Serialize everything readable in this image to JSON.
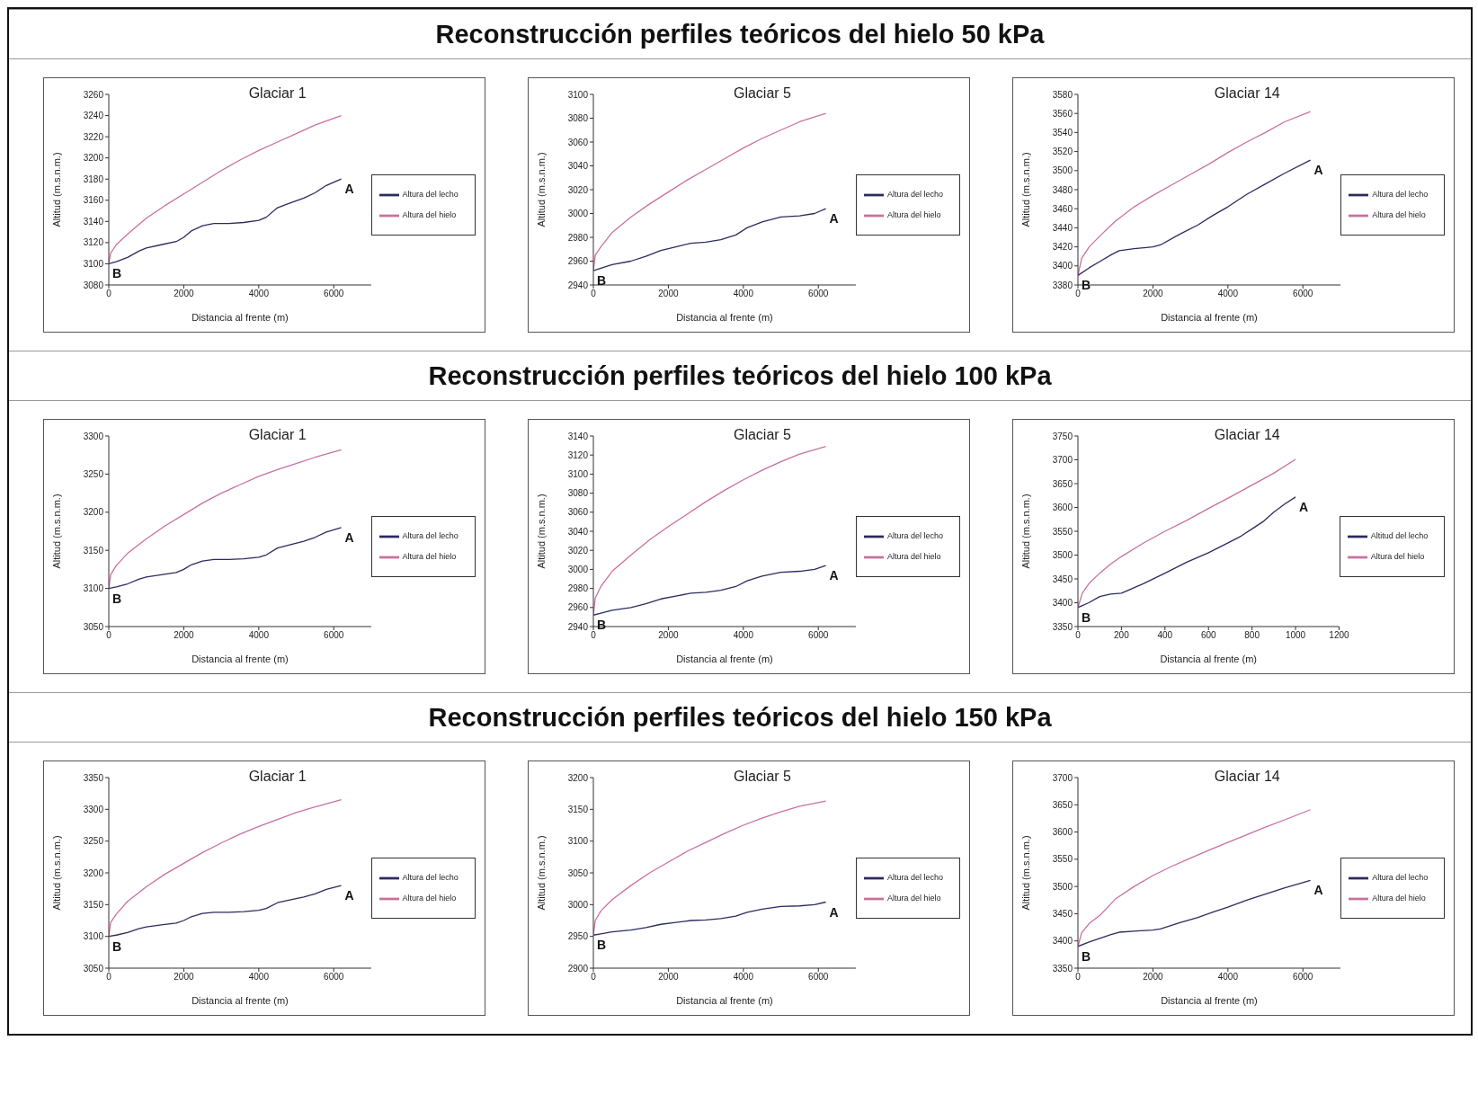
{
  "chart_data": [
    {
      "type": "other",
      "title": "Reconstrucción perfiles teóricos del hielo 50 kPa"
    },
    {
      "type": "line",
      "title": "Glaciar 1",
      "xlabel": "Distancia al frente (m)",
      "ylabel": "Altitud (m.s.n.m.)",
      "xlim": [
        0,
        7000
      ],
      "xticks": [
        0,
        2000,
        4000,
        6000
      ],
      "ylim": [
        3080,
        3260
      ],
      "yticks": [
        3080,
        3100,
        3120,
        3140,
        3160,
        3180,
        3200,
        3220,
        3240,
        3260
      ],
      "legend": "right",
      "marker": "none",
      "line_style": "solid",
      "series": [
        {
          "name": "Altura del lecho",
          "color": "#2b2b5e",
          "x": [
            0,
            200,
            500,
            800,
            1000,
            1400,
            1800,
            2000,
            2200,
            2500,
            2800,
            3200,
            3600,
            4000,
            4200,
            4500,
            4800,
            5200,
            5500,
            5800,
            6200
          ],
          "values": [
            3100,
            3102,
            3106,
            3112,
            3115,
            3118,
            3121,
            3125,
            3131,
            3136,
            3138,
            3138,
            3139,
            3141,
            3144,
            3153,
            3157,
            3162,
            3167,
            3174,
            3180
          ]
        },
        {
          "name": "Altura del hielo",
          "color": "#c9709e",
          "x": [
            0,
            50,
            200,
            500,
            1000,
            1500,
            2000,
            2500,
            3000,
            3500,
            4000,
            4500,
            5000,
            5500,
            6200
          ],
          "values": [
            3100,
            3110,
            3118,
            3128,
            3143,
            3155,
            3166,
            3177,
            3188,
            3198,
            3207,
            3215,
            3223,
            3231,
            3240
          ]
        }
      ],
      "annotations": [
        {
          "text": "A",
          "x": 6200,
          "y": 3180
        },
        {
          "text": "B",
          "x": 0,
          "y": 3100
        }
      ]
    },
    {
      "type": "line",
      "title": "Glaciar 5",
      "xlabel": "Distancia al frente (m)",
      "ylabel": "Altitud (m.s.n.m.)",
      "xlim": [
        0,
        7000
      ],
      "xticks": [
        0,
        2000,
        4000,
        6000
      ],
      "ylim": [
        2940,
        3100
      ],
      "yticks": [
        2940,
        2960,
        2980,
        3000,
        3020,
        3040,
        3060,
        3080,
        3100
      ],
      "legend": "right",
      "marker": "none",
      "line_style": "solid",
      "series": [
        {
          "name": "Altura del lecho",
          "color": "#2b2b5e",
          "x": [
            0,
            200,
            500,
            1000,
            1400,
            1800,
            2200,
            2600,
            3000,
            3400,
            3800,
            4100,
            4500,
            5000,
            5500,
            5900,
            6200
          ],
          "values": [
            2952,
            2954,
            2957,
            2960,
            2964,
            2969,
            2972,
            2975,
            2976,
            2978,
            2982,
            2988,
            2993,
            2997,
            2998,
            3000,
            3004
          ]
        },
        {
          "name": "Altura del hielo",
          "color": "#c9709e",
          "x": [
            0,
            50,
            200,
            500,
            1000,
            1500,
            2000,
            2500,
            3000,
            3500,
            4000,
            4500,
            5000,
            5500,
            6200
          ],
          "values": [
            2952,
            2965,
            2972,
            2984,
            2997,
            3008,
            3018,
            3028,
            3037,
            3046,
            3055,
            3063,
            3070,
            3077,
            3084
          ]
        }
      ],
      "annotations": [
        {
          "text": "A",
          "x": 6200,
          "y": 3004
        },
        {
          "text": "B",
          "x": 0,
          "y": 2952
        }
      ]
    },
    {
      "type": "line",
      "title": "Glaciar 14",
      "xlabel": "Distancia al frente (m)",
      "ylabel": "Altitud (m.s.n.m.)",
      "xlim": [
        0,
        7000
      ],
      "xticks": [
        0,
        2000,
        4000,
        6000
      ],
      "ylim": [
        3380,
        3580
      ],
      "yticks": [
        3380,
        3400,
        3420,
        3440,
        3460,
        3480,
        3500,
        3520,
        3540,
        3560,
        3580
      ],
      "legend": "right",
      "marker": "none",
      "line_style": "solid",
      "series": [
        {
          "name": "Altura del lecho",
          "color": "#2b2b5e",
          "x": [
            0,
            300,
            600,
            900,
            1100,
            1500,
            2000,
            2200,
            2700,
            3200,
            3600,
            4000,
            4500,
            5000,
            5500,
            6200
          ],
          "values": [
            3390,
            3398,
            3405,
            3412,
            3416,
            3418,
            3420,
            3422,
            3433,
            3443,
            3453,
            3462,
            3475,
            3486,
            3497,
            3511
          ]
        },
        {
          "name": "Altura del hielo",
          "color": "#c9709e",
          "x": [
            0,
            100,
            300,
            600,
            1000,
            1500,
            2000,
            2500,
            3000,
            3500,
            4000,
            4500,
            5000,
            5500,
            6200
          ],
          "values": [
            3390,
            3408,
            3420,
            3432,
            3447,
            3462,
            3474,
            3485,
            3496,
            3507,
            3519,
            3530,
            3540,
            3551,
            3562
          ]
        }
      ],
      "annotations": [
        {
          "text": "A",
          "x": 6200,
          "y": 3511
        },
        {
          "text": "B",
          "x": 0,
          "y": 3390
        }
      ]
    },
    {
      "type": "other",
      "title": "Reconstrucción perfiles teóricos del hielo 100 kPa"
    },
    {
      "type": "line",
      "title": "Glaciar 1",
      "xlabel": "Distancia al frente (m)",
      "ylabel": "Altitud (m.s.n.m.)",
      "xlim": [
        0,
        7000
      ],
      "xticks": [
        0,
        2000,
        4000,
        6000
      ],
      "ylim": [
        3050,
        3300
      ],
      "yticks": [
        3050,
        3100,
        3150,
        3200,
        3250,
        3300
      ],
      "legend": "right",
      "marker": "none",
      "line_style": "solid",
      "series": [
        {
          "name": "Altura del lecho",
          "color": "#2b2b5e",
          "x": [
            0,
            200,
            500,
            800,
            1000,
            1400,
            1800,
            2000,
            2200,
            2500,
            2800,
            3200,
            3600,
            4000,
            4200,
            4500,
            4800,
            5200,
            5500,
            5800,
            6200
          ],
          "values": [
            3100,
            3102,
            3106,
            3112,
            3115,
            3118,
            3121,
            3125,
            3131,
            3136,
            3138,
            3138,
            3139,
            3141,
            3144,
            3153,
            3157,
            3162,
            3167,
            3174,
            3180
          ]
        },
        {
          "name": "Altura del hielo",
          "color": "#c9709e",
          "x": [
            0,
            50,
            200,
            500,
            1000,
            1500,
            2000,
            2500,
            3000,
            3500,
            4000,
            4500,
            5000,
            5500,
            6200
          ],
          "values": [
            3100,
            3118,
            3130,
            3146,
            3165,
            3182,
            3197,
            3212,
            3225,
            3236,
            3247,
            3256,
            3264,
            3272,
            3282
          ]
        }
      ],
      "annotations": [
        {
          "text": "A",
          "x": 6200,
          "y": 3180
        },
        {
          "text": "B",
          "x": 0,
          "y": 3100
        }
      ]
    },
    {
      "type": "line",
      "title": "Glaciar 5",
      "xlabel": "Distancia al frente (m)",
      "ylabel": "Altitud (m.s.n.m.)",
      "xlim": [
        0,
        7000
      ],
      "xticks": [
        0,
        2000,
        4000,
        6000
      ],
      "ylim": [
        2940,
        3140
      ],
      "yticks": [
        2940,
        2960,
        2980,
        3000,
        3020,
        3040,
        3060,
        3080,
        3100,
        3120,
        3140
      ],
      "legend": "right",
      "marker": "none",
      "line_style": "solid",
      "series": [
        {
          "name": "Altura del lecho",
          "color": "#2b2b5e",
          "x": [
            0,
            200,
            500,
            1000,
            1400,
            1800,
            2200,
            2600,
            3000,
            3400,
            3800,
            4100,
            4500,
            5000,
            5500,
            5900,
            6200
          ],
          "values": [
            2952,
            2954,
            2957,
            2960,
            2964,
            2969,
            2972,
            2975,
            2976,
            2978,
            2982,
            2988,
            2993,
            2997,
            2998,
            3000,
            3004
          ]
        },
        {
          "name": "Altura del hielo",
          "color": "#c9709e",
          "x": [
            0,
            50,
            200,
            500,
            1000,
            1500,
            2000,
            2500,
            3000,
            3500,
            4000,
            4500,
            5000,
            5500,
            6200
          ],
          "values": [
            2952,
            2970,
            2982,
            2998,
            3015,
            3031,
            3045,
            3058,
            3071,
            3083,
            3094,
            3104,
            3113,
            3121,
            3129
          ]
        }
      ],
      "annotations": [
        {
          "text": "A",
          "x": 6200,
          "y": 3004
        },
        {
          "text": "B",
          "x": 0,
          "y": 2952
        }
      ]
    },
    {
      "type": "line",
      "title": "Glaciar 14",
      "xlabel": "Distancia al frente (m)",
      "ylabel": "Altitud (m.s.n.m.)",
      "xlim": [
        0,
        1200
      ],
      "xticks": [
        0,
        200,
        400,
        600,
        800,
        1000,
        1200
      ],
      "ylim": [
        3350,
        3750
      ],
      "yticks": [
        3350,
        3400,
        3450,
        3500,
        3550,
        3600,
        3650,
        3700,
        3750
      ],
      "legend": "right",
      "marker": "none",
      "line_style": "solid",
      "series": [
        {
          "name": "Altitud del lecho",
          "color": "#2b2b5e",
          "x": [
            0,
            50,
            100,
            150,
            200,
            250,
            300,
            400,
            500,
            600,
            700,
            750,
            800,
            850,
            900,
            950,
            1000
          ],
          "values": [
            3390,
            3400,
            3413,
            3418,
            3420,
            3430,
            3440,
            3462,
            3485,
            3505,
            3528,
            3540,
            3555,
            3570,
            3590,
            3607,
            3622
          ]
        },
        {
          "name": "Altura del hielo",
          "color": "#c9709e",
          "x": [
            0,
            20,
            50,
            100,
            150,
            200,
            300,
            400,
            500,
            600,
            700,
            800,
            900,
            1000
          ],
          "values": [
            3390,
            3420,
            3440,
            3462,
            3481,
            3497,
            3525,
            3550,
            3573,
            3598,
            3622,
            3647,
            3672,
            3701
          ]
        }
      ],
      "annotations": [
        {
          "text": "A",
          "x": 1000,
          "y": 3622
        },
        {
          "text": "B",
          "x": 0,
          "y": 3390
        }
      ]
    },
    {
      "type": "other",
      "title": "Reconstrucción perfiles teóricos del hielo 150 kPa"
    },
    {
      "type": "line",
      "title": "Glaciar 1",
      "xlabel": "Distancia al frente (m)",
      "ylabel": "Altitud (m.s.n.m.)",
      "xlim": [
        0,
        7000
      ],
      "xticks": [
        0,
        2000,
        4000,
        6000
      ],
      "ylim": [
        3050,
        3350
      ],
      "yticks": [
        3050,
        3100,
        3150,
        3200,
        3250,
        3300,
        3350
      ],
      "legend": "right",
      "marker": "none",
      "line_style": "solid",
      "series": [
        {
          "name": "Altura del lecho",
          "color": "#2b2b5e",
          "x": [
            0,
            200,
            500,
            800,
            1000,
            1400,
            1800,
            2000,
            2200,
            2500,
            2800,
            3200,
            3600,
            4000,
            4200,
            4500,
            4800,
            5200,
            5500,
            5800,
            6200
          ],
          "values": [
            3100,
            3102,
            3106,
            3112,
            3115,
            3118,
            3121,
            3125,
            3131,
            3136,
            3138,
            3138,
            3139,
            3141,
            3144,
            3153,
            3157,
            3162,
            3167,
            3174,
            3180
          ]
        },
        {
          "name": "Altura del hielo",
          "color": "#c9709e",
          "x": [
            0,
            50,
            200,
            500,
            1000,
            1500,
            2000,
            2500,
            3000,
            3500,
            4000,
            4500,
            5000,
            5500,
            6200
          ],
          "values": [
            3100,
            3122,
            3135,
            3155,
            3178,
            3198,
            3215,
            3232,
            3247,
            3261,
            3273,
            3284,
            3295,
            3304,
            3315
          ]
        }
      ],
      "annotations": [
        {
          "text": "A",
          "x": 6200,
          "y": 3180
        },
        {
          "text": "B",
          "x": 0,
          "y": 3100
        }
      ]
    },
    {
      "type": "line",
      "title": "Glaciar 5",
      "xlabel": "Distancia al frente (m)",
      "ylabel": "Altitud (m.s.n.m.)",
      "xlim": [
        0,
        7000
      ],
      "xticks": [
        0,
        2000,
        4000,
        6000
      ],
      "ylim": [
        2900,
        3200
      ],
      "yticks": [
        2900,
        2950,
        3000,
        3050,
        3100,
        3150,
        3200
      ],
      "legend": "right",
      "marker": "none",
      "line_style": "solid",
      "series": [
        {
          "name": "Altura del lecho",
          "color": "#2b2b5e",
          "x": [
            0,
            200,
            500,
            1000,
            1400,
            1800,
            2200,
            2600,
            3000,
            3400,
            3800,
            4100,
            4500,
            5000,
            5500,
            5900,
            6200
          ],
          "values": [
            2952,
            2954,
            2957,
            2960,
            2964,
            2969,
            2972,
            2975,
            2976,
            2978,
            2982,
            2988,
            2993,
            2997,
            2998,
            3000,
            3004
          ]
        },
        {
          "name": "Altura del hielo",
          "color": "#c9709e",
          "x": [
            0,
            50,
            200,
            500,
            1000,
            1500,
            2000,
            2500,
            3000,
            3500,
            4000,
            4500,
            5000,
            5500,
            6200
          ],
          "values": [
            2952,
            2975,
            2990,
            3008,
            3030,
            3050,
            3067,
            3084,
            3098,
            3112,
            3125,
            3136,
            3146,
            3155,
            3163
          ]
        }
      ],
      "annotations": [
        {
          "text": "A",
          "x": 6200,
          "y": 3004
        },
        {
          "text": "B",
          "x": 0,
          "y": 2952
        }
      ]
    },
    {
      "type": "line",
      "title": "Glaciar 14",
      "xlabel": "Distancia al frente (m)",
      "ylabel": "Altitud (m.s.n.m.)",
      "xlim": [
        0,
        7000
      ],
      "xticks": [
        0,
        2000,
        4000,
        6000
      ],
      "ylim": [
        3350,
        3700
      ],
      "yticks": [
        3350,
        3400,
        3450,
        3500,
        3550,
        3600,
        3650,
        3700
      ],
      "legend": "right",
      "marker": "none",
      "line_style": "solid",
      "series": [
        {
          "name": "Altura del lecho",
          "color": "#2b2b5e",
          "x": [
            0,
            300,
            600,
            900,
            1100,
            1500,
            2000,
            2200,
            2700,
            3200,
            3600,
            4000,
            4500,
            5000,
            5500,
            6200
          ],
          "values": [
            3390,
            3398,
            3405,
            3412,
            3416,
            3418,
            3420,
            3422,
            3433,
            3443,
            3453,
            3462,
            3475,
            3486,
            3497,
            3511
          ]
        },
        {
          "name": "Altura del hielo",
          "color": "#c9709e",
          "x": [
            0,
            100,
            300,
            600,
            1000,
            1500,
            2000,
            2500,
            3000,
            3500,
            4000,
            4500,
            5000,
            5500,
            6200
          ],
          "values": [
            3390,
            3415,
            3432,
            3448,
            3477,
            3500,
            3520,
            3537,
            3552,
            3567,
            3581,
            3595,
            3609,
            3622,
            3641
          ]
        }
      ],
      "annotations": [
        {
          "text": "A",
          "x": 6200,
          "y": 3511
        },
        {
          "text": "B",
          "x": 0,
          "y": 3390
        }
      ]
    }
  ]
}
